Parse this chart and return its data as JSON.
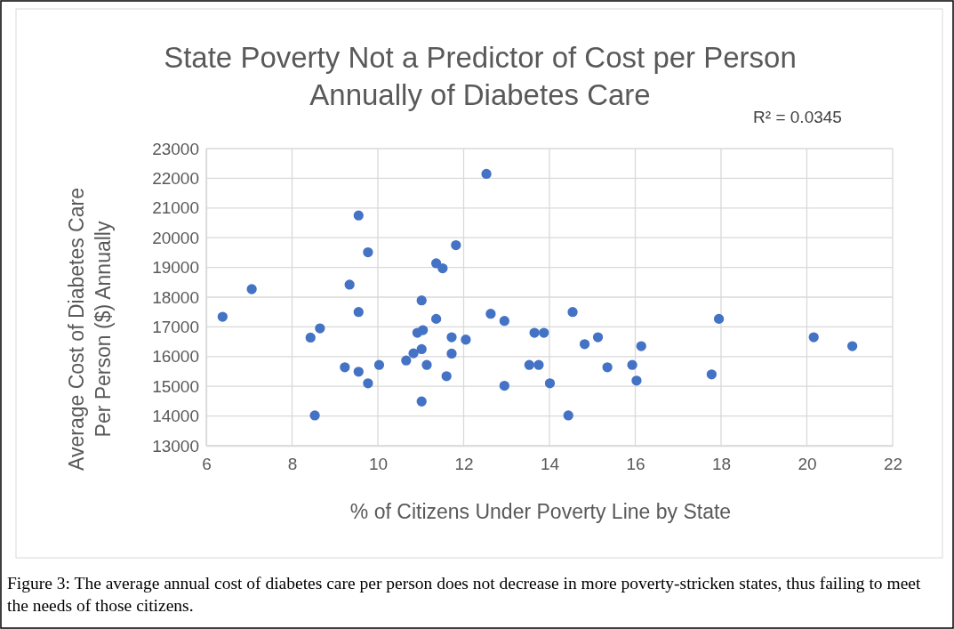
{
  "chart_data": {
    "type": "scatter",
    "title": "State Poverty Not a Predictor of Cost per Person Annually of Diabetes Care",
    "xlabel": "% of Citizens Under Poverty Line by State",
    "ylabel": "Average Cost of Diabetes Care Per Person ($) Annually",
    "annotations": [
      "R² = 0.0345",
      "Figure 3: The average annual cost of diabetes care per person does not decrease in more poverty-stricken states, thus failing to meet the needs of those citizens."
    ],
    "xlim": [
      6,
      22
    ],
    "xticks": [
      6,
      8,
      10,
      12,
      14,
      16,
      18,
      20,
      22
    ],
    "ylim": [
      13000,
      23000
    ],
    "yticks": [
      13000,
      14000,
      15000,
      16000,
      17000,
      18000,
      19000,
      20000,
      21000,
      22000,
      23000
    ],
    "grid": true,
    "marker": "circle",
    "series": [
      {
        "color": "#4472c4",
        "x": [
          9.55,
          9.77,
          7.06,
          9.34,
          11.82,
          11.36,
          11.51,
          6.38,
          9.55,
          11.02,
          11.36,
          8.65,
          8.43,
          10.92,
          11.05,
          11.72,
          11.02,
          10.83,
          10.66,
          11.72,
          9.23,
          9.55,
          10.03,
          9.77,
          11.14,
          11.6,
          11.02,
          8.53,
          12.53,
          12.63,
          12.95,
          12.05,
          13.65,
          13.87,
          14.54,
          14.82,
          15.13,
          16.14,
          13.53,
          13.75,
          15.35,
          15.93,
          16.03,
          12.95,
          14.01,
          14.44,
          17.95,
          17.78,
          20.16,
          21.06
        ],
        "values": [
          20750,
          19510,
          18270,
          18420,
          19750,
          19140,
          18970,
          17340,
          17500,
          17890,
          17270,
          16950,
          16640,
          16800,
          16890,
          16650,
          16250,
          16110,
          15870,
          16100,
          15640,
          15490,
          15720,
          15100,
          15720,
          15340,
          14490,
          14020,
          22150,
          17440,
          17200,
          16570,
          16800,
          16800,
          17500,
          16420,
          16650,
          16350,
          15720,
          15720,
          15640,
          15720,
          15190,
          15020,
          15100,
          14020,
          17270,
          15400,
          16650,
          16350
        ]
      }
    ]
  }
}
